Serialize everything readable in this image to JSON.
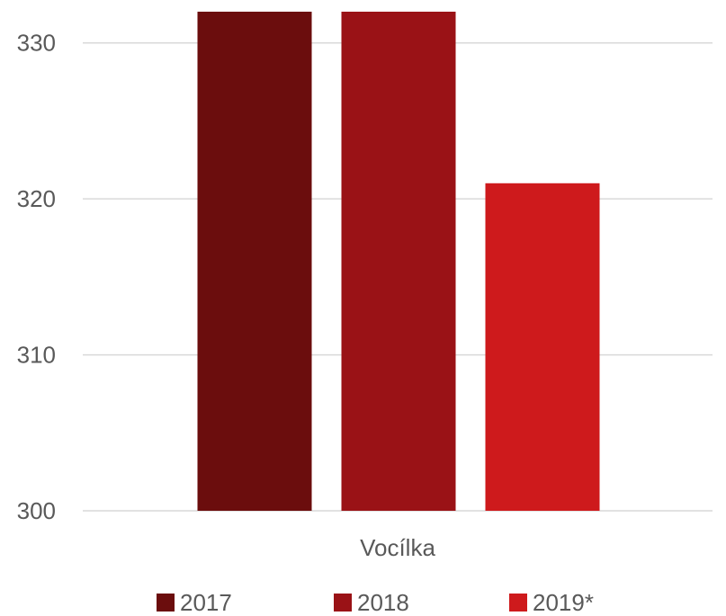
{
  "chart_data": {
    "type": "bar",
    "categories": [
      "Vocílka"
    ],
    "series": [
      {
        "name": "2017",
        "values": [
          332
        ],
        "color": "#6B0D0D"
      },
      {
        "name": "2018",
        "values": [
          332
        ],
        "color": "#9A1216"
      },
      {
        "name": "2019*",
        "values": [
          321
        ],
        "color": "#CE1A1C"
      }
    ],
    "ylim": [
      300,
      332
    ],
    "yticks": [
      300,
      310,
      320,
      330
    ],
    "grid": true,
    "legend": "bottom",
    "title": "",
    "xlabel": "",
    "ylabel": ""
  }
}
